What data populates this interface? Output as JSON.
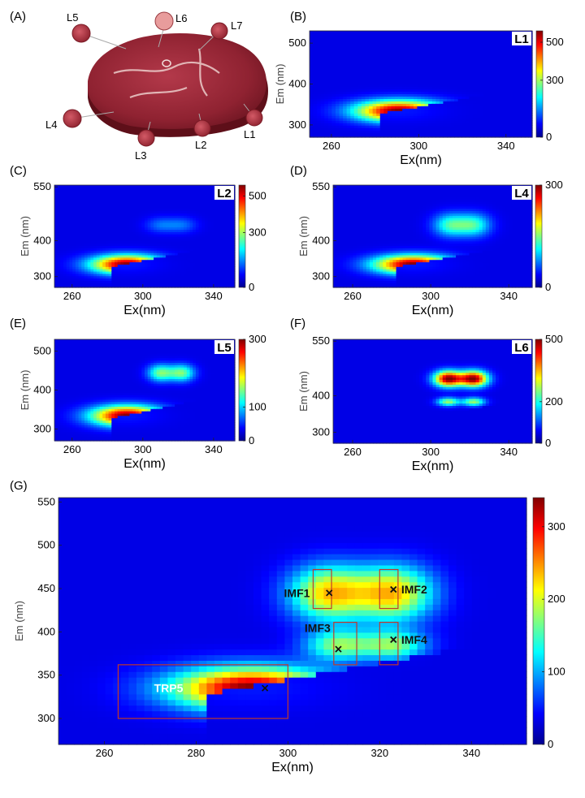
{
  "panel_labels": [
    "(A)",
    "(B)",
    "(C)",
    "(D)",
    "(E)",
    "(F)",
    "(G)"
  ],
  "photo": {
    "labels": [
      "L5",
      "L6",
      "L7",
      "L4",
      "L3",
      "L2",
      "L1"
    ]
  },
  "chart_data": [
    {
      "id": "B",
      "type": "heatmap",
      "badge": "L1",
      "xlabel": "Ex(nm)",
      "ylabel": "Em (nm)",
      "xlim": [
        250,
        352
      ],
      "ylim": [
        270,
        530
      ],
      "xticks": [
        260,
        300,
        340
      ],
      "yticks": [
        300,
        400,
        500
      ],
      "cbar_ticks": [
        0,
        300,
        500
      ],
      "cbar_max": 560,
      "peaks": [
        {
          "ex": 291,
          "em": 335,
          "v": 560,
          "sx": 14,
          "sy": 18
        }
      ]
    },
    {
      "id": "C",
      "type": "heatmap",
      "badge": "L2",
      "xlabel": "Ex(nm)",
      "ylabel": "Em (nm)",
      "xlim": [
        250,
        352
      ],
      "ylim": [
        270,
        555
      ],
      "xticks": [
        260,
        300,
        340
      ],
      "yticks": [
        300,
        400,
        550
      ],
      "cbar_ticks": [
        0,
        300,
        500
      ],
      "cbar_max": 560,
      "peaks": [
        {
          "ex": 291,
          "em": 335,
          "v": 560,
          "sx": 14,
          "sy": 18
        },
        {
          "ex": 310,
          "em": 445,
          "v": 80,
          "sx": 6,
          "sy": 15
        },
        {
          "ex": 322,
          "em": 445,
          "v": 80,
          "sx": 6,
          "sy": 15
        }
      ]
    },
    {
      "id": "D",
      "type": "heatmap",
      "badge": "L4",
      "xlabel": "Ex(nm)",
      "ylabel": "Em (nm)",
      "xlim": [
        250,
        352
      ],
      "ylim": [
        270,
        555
      ],
      "xticks": [
        260,
        300,
        340
      ],
      "yticks": [
        300,
        400,
        550
      ],
      "cbar_ticks": [
        0,
        300
      ],
      "cbar_max": 300,
      "peaks": [
        {
          "ex": 291,
          "em": 335,
          "v": 300,
          "sx": 14,
          "sy": 18
        },
        {
          "ex": 310,
          "em": 445,
          "v": 110,
          "sx": 6,
          "sy": 22
        },
        {
          "ex": 322,
          "em": 445,
          "v": 110,
          "sx": 6,
          "sy": 22
        }
      ]
    },
    {
      "id": "E",
      "type": "heatmap",
      "badge": "L5",
      "xlabel": "Ex(nm)",
      "ylabel": "Em (nm)",
      "xlim": [
        250,
        352
      ],
      "ylim": [
        270,
        530
      ],
      "xticks": [
        260,
        300,
        340
      ],
      "yticks": [
        300,
        400,
        500
      ],
      "cbar_ticks": [
        0,
        100,
        300
      ],
      "cbar_max": 300,
      "peaks": [
        {
          "ex": 291,
          "em": 335,
          "v": 300,
          "sx": 14,
          "sy": 18
        },
        {
          "ex": 310,
          "em": 445,
          "v": 130,
          "sx": 5,
          "sy": 15
        },
        {
          "ex": 322,
          "em": 445,
          "v": 130,
          "sx": 5,
          "sy": 15
        }
      ]
    },
    {
      "id": "F",
      "type": "heatmap",
      "badge": "L6",
      "xlabel": "Ex(nm)",
      "ylabel": "Em (nm)",
      "xlim": [
        250,
        352
      ],
      "ylim": [
        270,
        555
      ],
      "xticks": [
        260,
        300,
        340
      ],
      "yticks": [
        300,
        400,
        550
      ],
      "cbar_ticks": [
        0,
        200,
        500
      ],
      "cbar_max": 500,
      "peaks": [
        {
          "ex": 309,
          "em": 448,
          "v": 500,
          "sx": 5,
          "sy": 15
        },
        {
          "ex": 322,
          "em": 448,
          "v": 500,
          "sx": 5,
          "sy": 15
        },
        {
          "ex": 309,
          "em": 385,
          "v": 240,
          "sx": 4,
          "sy": 8
        },
        {
          "ex": 322,
          "em": 385,
          "v": 240,
          "sx": 4,
          "sy": 8
        }
      ]
    },
    {
      "id": "G",
      "type": "heatmap",
      "xlabel": "Ex(nm)",
      "ylabel": "Em (nm)",
      "xlim": [
        250,
        352
      ],
      "ylim": [
        270,
        555
      ],
      "xticks": [
        260,
        280,
        300,
        320,
        340
      ],
      "yticks": [
        300,
        350,
        400,
        450,
        500,
        550
      ],
      "cbar_ticks": [
        0,
        100,
        200,
        300
      ],
      "cbar_max": 340,
      "peaks": [
        {
          "ex": 292,
          "em": 335,
          "v": 340,
          "sx": 12,
          "sy": 17
        },
        {
          "ex": 309,
          "em": 445,
          "v": 215,
          "sx": 6,
          "sy": 22
        },
        {
          "ex": 323,
          "em": 445,
          "v": 215,
          "sx": 6,
          "sy": 22
        },
        {
          "ex": 311,
          "em": 385,
          "v": 150,
          "sx": 5,
          "sy": 12
        },
        {
          "ex": 323,
          "em": 385,
          "v": 150,
          "sx": 5,
          "sy": 12
        }
      ],
      "regions": [
        {
          "name": "TRP5",
          "x0": 263,
          "x1": 300,
          "y0": 300,
          "y1": 362,
          "mark_ex": 295,
          "mark_em": 335
        },
        {
          "name": "IMF1",
          "x0": 305.5,
          "x1": 309.5,
          "y0": 427,
          "y1": 472,
          "mark_ex": 309,
          "mark_em": 445
        },
        {
          "name": "IMF2",
          "x0": 320,
          "x1": 324,
          "y0": 427,
          "y1": 472,
          "mark_ex": 323,
          "mark_em": 449
        },
        {
          "name": "IMF3",
          "x0": 310,
          "x1": 315,
          "y0": 362,
          "y1": 411,
          "mark_ex": 311,
          "mark_em": 380
        },
        {
          "name": "IMF4",
          "x0": 320,
          "x1": 324,
          "y0": 362,
          "y1": 411,
          "mark_ex": 323,
          "mark_em": 391
        }
      ]
    }
  ]
}
